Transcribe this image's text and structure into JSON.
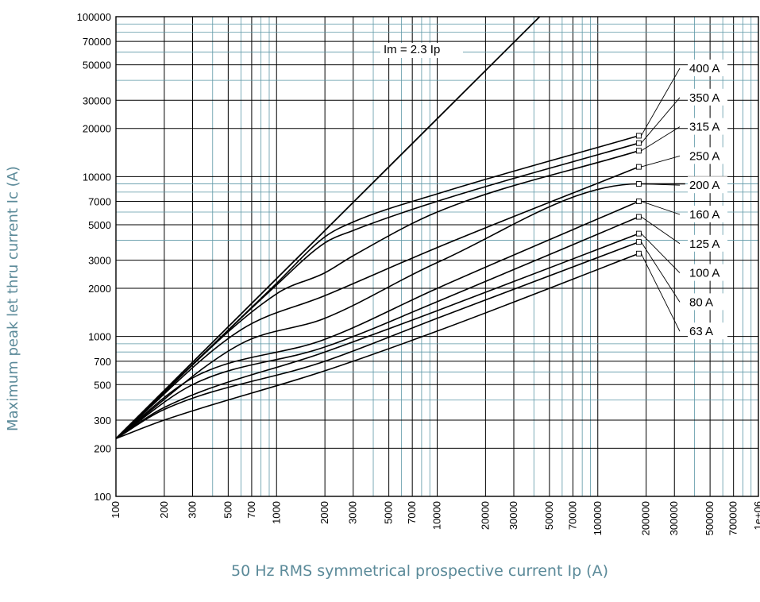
{
  "chart_data": {
    "type": "line",
    "xlabel": "50 Hz RMS symmetrical prospective current Ip (A)",
    "ylabel": "Maximum peak let thru current Ic (A)",
    "xscale": "log",
    "yscale": "log",
    "xlim": [
      100,
      1000000
    ],
    "ylim": [
      100,
      100000
    ],
    "grid": true,
    "x_ticks": [
      "100",
      "200",
      "300",
      "500",
      "700",
      "1000",
      "2000",
      "3000",
      "5000",
      "7000",
      "10000",
      "20000",
      "30000",
      "50000",
      "70000",
      "100000",
      "200000",
      "300000",
      "500000",
      "700000",
      "1e+06"
    ],
    "y_ticks": [
      "100",
      "200",
      "300",
      "500",
      "700",
      "1000",
      "2000",
      "3000",
      "5000",
      "7000",
      "10000",
      "20000",
      "30000",
      "50000",
      "70000",
      "100000"
    ],
    "reference_line": {
      "label": "Im = 2.3 Ip",
      "x": [
        100,
        43478
      ],
      "y": [
        230,
        100000
      ]
    },
    "series": [
      {
        "name": "400 A",
        "x": [
          100,
          1000,
          2000,
          3000,
          10000,
          180000
        ],
        "y": [
          230,
          2150,
          4200,
          5200,
          7800,
          18000
        ]
      },
      {
        "name": "350 A",
        "x": [
          100,
          1000,
          2000,
          3000,
          10000,
          180000
        ],
        "y": [
          230,
          2100,
          3850,
          4600,
          7000,
          16200
        ]
      },
      {
        "name": "315 A",
        "x": [
          100,
          1000,
          2000,
          3000,
          10000,
          180000
        ],
        "y": [
          230,
          1850,
          2500,
          3200,
          6000,
          14500
        ]
      },
      {
        "name": "250 A",
        "x": [
          100,
          600,
          2000,
          10000,
          180000
        ],
        "y": [
          230,
          1100,
          1800,
          3600,
          11500
        ]
      },
      {
        "name": "200 A",
        "x": [
          100,
          600,
          2000,
          10000,
          180000,
          350000
        ],
        "y": [
          230,
          900,
          1300,
          2900,
          9000,
          9000
        ]
      },
      {
        "name": "160 A",
        "x": [
          100,
          300,
          2000,
          10000,
          180000
        ],
        "y": [
          230,
          550,
          960,
          2000,
          7000
        ]
      },
      {
        "name": "125 A",
        "x": [
          100,
          300,
          2000,
          10000,
          180000
        ],
        "y": [
          230,
          500,
          860,
          1650,
          5600
        ]
      },
      {
        "name": "100 A",
        "x": [
          100,
          200,
          2000,
          10000,
          180000
        ],
        "y": [
          230,
          360,
          800,
          1450,
          4400
        ]
      },
      {
        "name": "80 A",
        "x": [
          100,
          200,
          2000,
          10000,
          180000
        ],
        "y": [
          230,
          350,
          700,
          1300,
          3900
        ]
      },
      {
        "name": "63 A",
        "x": [
          100,
          200,
          2000,
          10000,
          180000
        ],
        "y": [
          230,
          300,
          610,
          1080,
          3300
        ]
      }
    ]
  }
}
